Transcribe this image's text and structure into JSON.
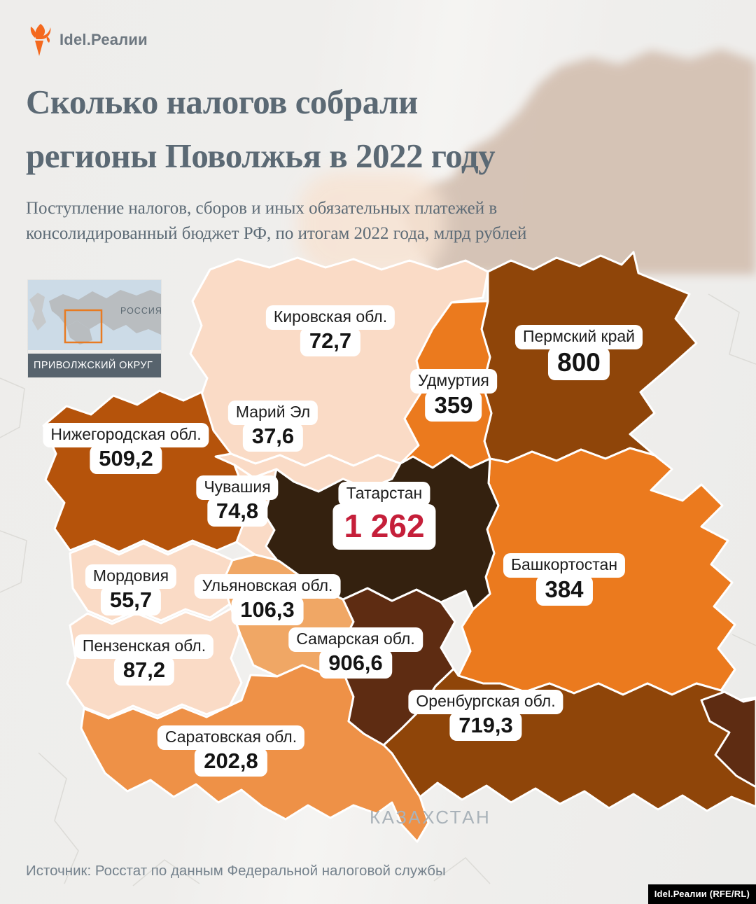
{
  "page": {
    "background": "#efeeec"
  },
  "logo": {
    "text": "Idel.Реалии",
    "color": "#6d7780",
    "flame_color": "#f4691e"
  },
  "header": {
    "title_line1": "Сколько налогов собрали",
    "title_line2": "регионы Поволжья в 2022 году",
    "subtitle_line1": "Поступление налогов, сборов и иных обязательных платежей в",
    "subtitle_line2": "консолидированный бюджет РФ, по итогам 2022 года, млрд рублей",
    "text_color": "#5b6974"
  },
  "inset_map": {
    "country_label": "РОССИЯ",
    "district_label": "ПРИВОЛЖСКИЙ ОКРУГ",
    "sea_color": "#ccdbe7",
    "land_color": "#b9bdc0",
    "highlight_color": "#e87b22",
    "bar_color": "#57636d"
  },
  "map": {
    "kazakhstan_label": "КАЗАХСТАН",
    "border_color": "#ffffff",
    "regions": [
      {
        "id": "kirov",
        "name": "Кировская обл.",
        "value": "72,7",
        "fill": "#fadbc6"
      },
      {
        "id": "perm",
        "name": "Пермский край",
        "value": "800",
        "fill": "#8f4509"
      },
      {
        "id": "udmurtia",
        "name": "Удмуртия",
        "value": "359",
        "fill": "#eb7a1e"
      },
      {
        "id": "mariel",
        "name": "Марий Эл",
        "value": "37,6",
        "fill": "#fadbc6"
      },
      {
        "id": "nizhny",
        "name": "Нижегородская обл.",
        "value": "509,2",
        "fill": "#b5530b"
      },
      {
        "id": "chuvashia",
        "name": "Чувашия",
        "value": "74,8",
        "fill": "#fadbc6"
      },
      {
        "id": "tatarstan",
        "name": "Татарстан",
        "value": "1 262",
        "fill": "#34210f",
        "value_color": "#c51f3a"
      },
      {
        "id": "mordovia",
        "name": "Мордовия",
        "value": "55,7",
        "fill": "#fadbc6"
      },
      {
        "id": "ulyanovsk",
        "name": "Ульяновская обл.",
        "value": "106,3",
        "fill": "#f0a765"
      },
      {
        "id": "penza",
        "name": "Пензенская обл.",
        "value": "87,2",
        "fill": "#fadbc6"
      },
      {
        "id": "samara",
        "name": "Самарская обл.",
        "value": "906,6",
        "fill": "#5e2c12"
      },
      {
        "id": "bashkortostan",
        "name": "Башкортостан",
        "value": "384",
        "fill": "#eb7a1e"
      },
      {
        "id": "orenburg",
        "name": "Оренбургская обл.",
        "value": "719,3",
        "fill": "#8f4509"
      },
      {
        "id": "saratov",
        "name": "Саратовская обл.",
        "value": "202,8",
        "fill": "#ee9147"
      }
    ]
  },
  "footer": {
    "source": "Источник: Росстат по данным Федеральной налоговой службы",
    "credit": "Idel.Реалии (RFE/RL)"
  }
}
